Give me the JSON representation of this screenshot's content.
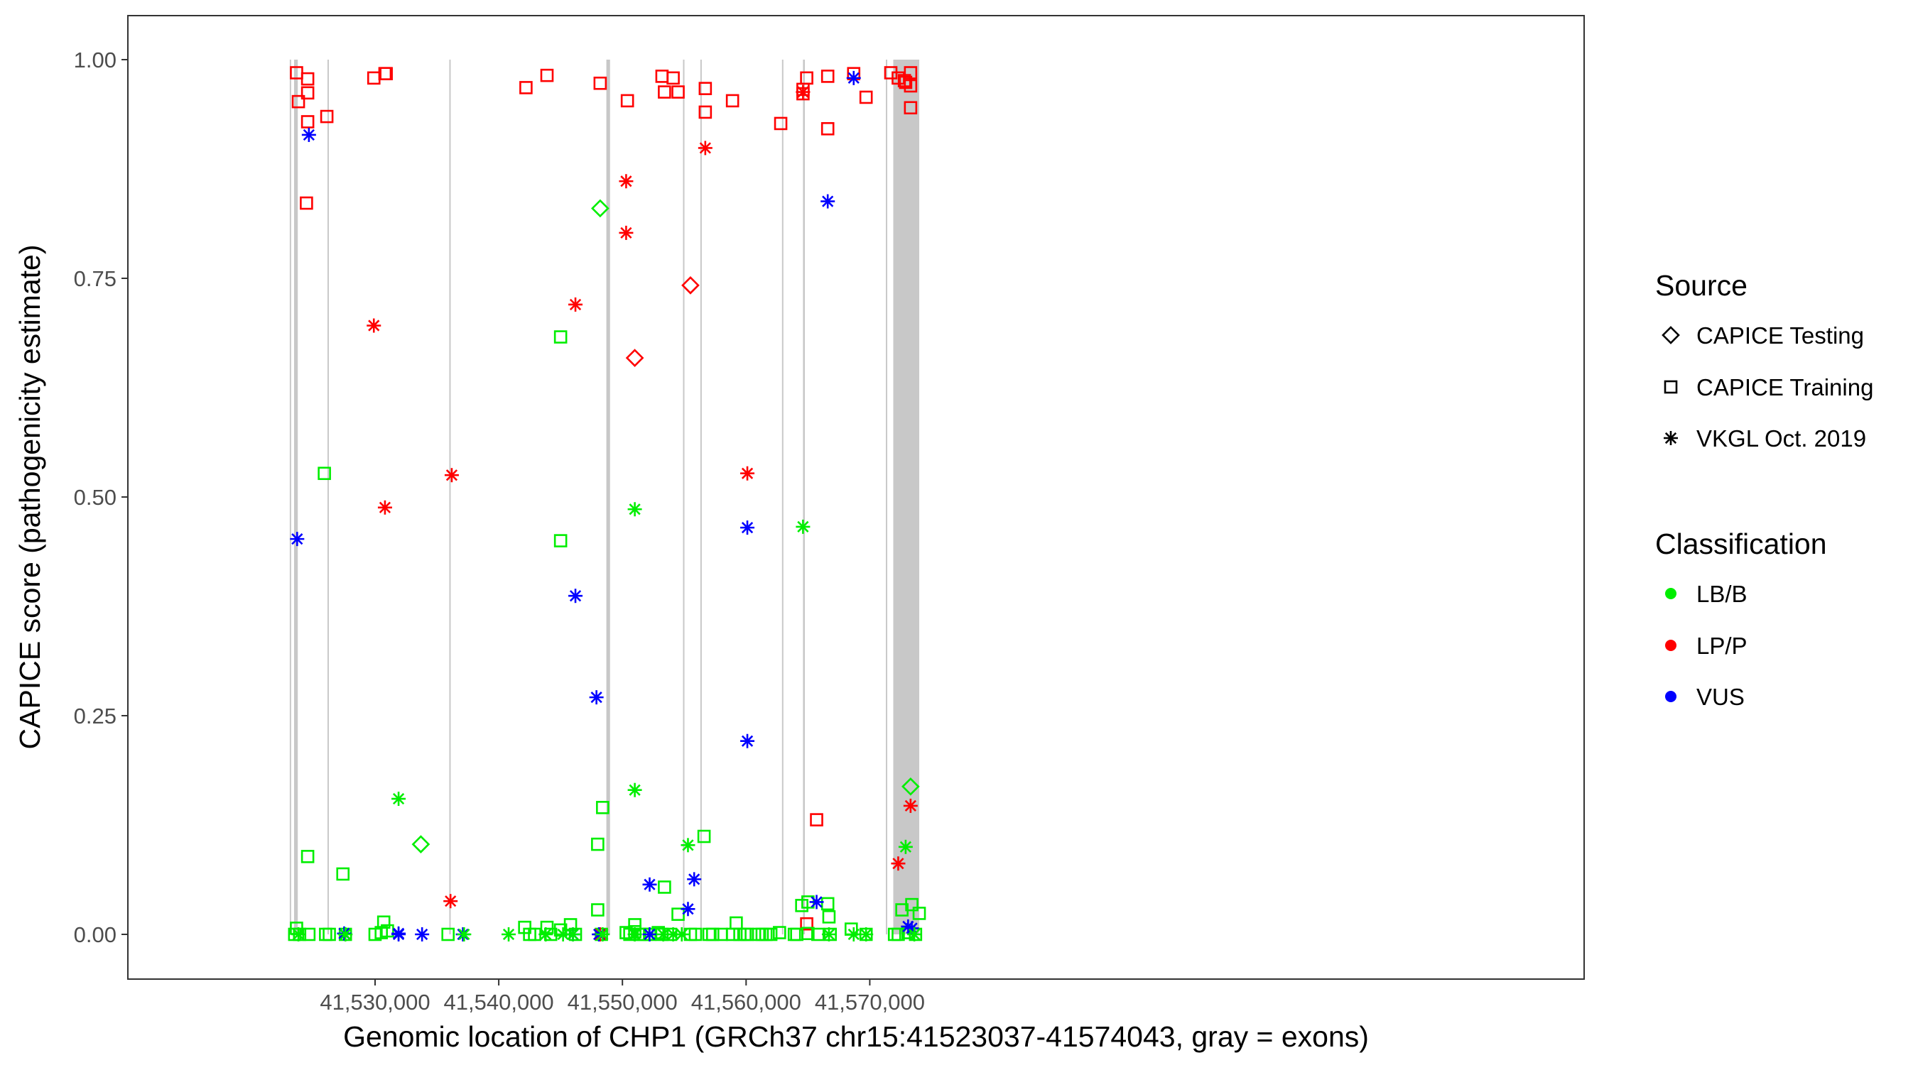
{
  "chart_data": {
    "type": "scatter",
    "title": "",
    "xlabel": "Genomic location of CHP1 (GRCh37 chr15:41523037-41574043, gray = exons)",
    "ylabel": "CAPICE score (pathogenicity estimate)",
    "xlim": [
      41521000,
      41575000
    ],
    "ylim": [
      -0.1,
      1.1
    ],
    "xticks": [
      41530000,
      41540000,
      41550000,
      41560000,
      41570000
    ],
    "xtick_labels": [
      "41,530,000",
      "41,540,000",
      "41,550,000",
      "41,560,000",
      "41,570,000"
    ],
    "yticks": [
      0,
      0.25,
      0.5,
      0.75,
      1
    ],
    "ytick_labels": [
      "0.00",
      "0.25",
      "0.50",
      "0.75",
      "1.00"
    ],
    "grid": false,
    "legend_position": "right",
    "exons": [
      [
        41523100,
        41523200
      ],
      [
        41523450,
        41523750
      ],
      [
        41526150,
        41526250
      ],
      [
        41536000,
        41536100
      ],
      [
        41548700,
        41549000
      ],
      [
        41554900,
        41555000
      ],
      [
        41556300,
        41556400
      ],
      [
        41562900,
        41563000
      ],
      [
        41564600,
        41564750
      ],
      [
        41571300,
        41571400
      ],
      [
        41571900,
        41574000
      ]
    ],
    "legend": {
      "source_title": "Source",
      "source_items": [
        {
          "label": "CAPICE Testing",
          "shape": "diamond"
        },
        {
          "label": "CAPICE Training",
          "shape": "square"
        },
        {
          "label": "VKGL Oct. 2019",
          "shape": "asterisk"
        }
      ],
      "class_title": "Classification",
      "class_items": [
        {
          "label": "LB/B",
          "color": "#00ee00"
        },
        {
          "label": "LP/P",
          "color": "#ff0000"
        },
        {
          "label": "VUS",
          "color": "#0000ff"
        }
      ]
    },
    "series": [
      {
        "source": "CAPICE Training",
        "class": "LP/P",
        "points": [
          [
            41523650,
            0.985
          ],
          [
            41523800,
            0.952
          ],
          [
            41524550,
            0.978
          ],
          [
            41524550,
            0.962
          ],
          [
            41524550,
            0.929
          ],
          [
            41524450,
            0.836
          ],
          [
            41526100,
            0.935
          ],
          [
            41529900,
            0.979
          ],
          [
            41530800,
            0.984
          ],
          [
            41530900,
            0.984
          ],
          [
            41542200,
            0.968
          ],
          [
            41543900,
            0.982
          ],
          [
            41548200,
            0.973
          ],
          [
            41550400,
            0.953
          ],
          [
            41553200,
            0.981
          ],
          [
            41553400,
            0.963
          ],
          [
            41554100,
            0.979
          ],
          [
            41554500,
            0.963
          ],
          [
            41556700,
            0.967
          ],
          [
            41556700,
            0.94
          ],
          [
            41558900,
            0.953
          ],
          [
            41562800,
            0.927
          ],
          [
            41564600,
            0.966
          ],
          [
            41564900,
            0.979
          ],
          [
            41564600,
            0.961
          ],
          [
            41566600,
            0.981
          ],
          [
            41566600,
            0.921
          ],
          [
            41568700,
            0.984
          ],
          [
            41569700,
            0.957
          ],
          [
            41571700,
            0.985
          ],
          [
            41572300,
            0.979
          ],
          [
            41572800,
            0.976
          ],
          [
            41572900,
            0.974
          ],
          [
            41573300,
            0.985
          ],
          [
            41573300,
            0.97
          ],
          [
            41573300,
            0.945
          ],
          [
            41565700,
            0.131
          ],
          [
            41564900,
            0.012
          ]
        ]
      },
      {
        "source": "CAPICE Training",
        "class": "LB/B",
        "points": [
          [
            41523650,
            0.007
          ],
          [
            41523500,
            0.0
          ],
          [
            41523900,
            0.0
          ],
          [
            41524650,
            0.0
          ],
          [
            41524550,
            0.089
          ],
          [
            41525900,
            0.527
          ],
          [
            41526000,
            0.0
          ],
          [
            41526300,
            0.0
          ],
          [
            41527400,
            0.069
          ],
          [
            41527600,
            0.0
          ],
          [
            41530000,
            0.0
          ],
          [
            41530700,
            0.014
          ],
          [
            41530500,
            0.002
          ],
          [
            41531000,
            0.004
          ],
          [
            41535900,
            0.0
          ],
          [
            41542100,
            0.008
          ],
          [
            41542500,
            0.0
          ],
          [
            41542900,
            0.0
          ],
          [
            41543900,
            0.008
          ],
          [
            41544200,
            0.0
          ],
          [
            41545000,
            0.683
          ],
          [
            41545000,
            0.45
          ],
          [
            41545000,
            0.005
          ],
          [
            41545800,
            0.011
          ],
          [
            41546200,
            0.0
          ],
          [
            41548000,
            0.103
          ],
          [
            41548000,
            0.028
          ],
          [
            41548400,
            0.145
          ],
          [
            41548300,
            0.0
          ],
          [
            41550300,
            0.002
          ],
          [
            41550600,
            0.0
          ],
          [
            41551000,
            0.011
          ],
          [
            41551000,
            0.003
          ],
          [
            41551400,
            0.0
          ],
          [
            41551700,
            0.0
          ],
          [
            41552200,
            0.0
          ],
          [
            41552900,
            0.002
          ],
          [
            41553200,
            0.0
          ],
          [
            41553400,
            0.054
          ],
          [
            41553900,
            0.0
          ],
          [
            41554500,
            0.023
          ],
          [
            41555500,
            0.0
          ],
          [
            41555900,
            0.0
          ],
          [
            41556600,
            0.112
          ],
          [
            41557000,
            0.0
          ],
          [
            41557300,
            0.0
          ],
          [
            41558000,
            0.0
          ],
          [
            41558900,
            0.0
          ],
          [
            41559200,
            0.013
          ],
          [
            41559500,
            0.0
          ],
          [
            41559900,
            0.0
          ],
          [
            41560100,
            0.0
          ],
          [
            41561000,
            0.0
          ],
          [
            41561300,
            0.0
          ],
          [
            41561600,
            0.0
          ],
          [
            41562000,
            0.0
          ],
          [
            41562700,
            0.002
          ],
          [
            41563900,
            0.0
          ],
          [
            41564100,
            0.0
          ],
          [
            41564500,
            0.033
          ],
          [
            41565000,
            0.037
          ],
          [
            41565000,
            0.001
          ],
          [
            41565800,
            0.0
          ],
          [
            41566600,
            0.035
          ],
          [
            41566700,
            0.02
          ],
          [
            41566800,
            0.0
          ],
          [
            41568500,
            0.006
          ],
          [
            41569700,
            0.0
          ],
          [
            41572000,
            0.0
          ],
          [
            41572300,
            0.0
          ],
          [
            41572600,
            0.028
          ],
          [
            41573100,
            0.002
          ],
          [
            41573400,
            0.034
          ],
          [
            41573700,
            0.0
          ],
          [
            41574000,
            0.024
          ]
        ]
      },
      {
        "source": "CAPICE Testing",
        "class": "LB/B",
        "points": [
          [
            41548200,
            0.83
          ],
          [
            41533700,
            0.103
          ],
          [
            41573300,
            0.169
          ]
        ]
      },
      {
        "source": "CAPICE Testing",
        "class": "LP/P",
        "points": [
          [
            41555500,
            0.742
          ],
          [
            41551000,
            0.659
          ]
        ]
      },
      {
        "source": "VKGL Oct. 2019",
        "class": "LP/P",
        "points": [
          [
            41529900,
            0.696
          ],
          [
            41530800,
            0.488
          ],
          [
            41536200,
            0.525
          ],
          [
            41536100,
            0.038
          ],
          [
            41546200,
            0.72
          ],
          [
            41550300,
            0.861
          ],
          [
            41550300,
            0.802
          ],
          [
            41556700,
            0.899
          ],
          [
            41560100,
            0.527
          ],
          [
            41564600,
            0.963
          ],
          [
            41572300,
            0.081
          ],
          [
            41573300,
            0.147
          ],
          [
            41548200,
            0.0
          ]
        ]
      },
      {
        "source": "VKGL Oct. 2019",
        "class": "VUS",
        "points": [
          [
            41523700,
            0.452
          ],
          [
            41524650,
            0.914
          ],
          [
            41527500,
            0.001
          ],
          [
            41531900,
            0.001
          ],
          [
            41531900,
            0.0
          ],
          [
            41533800,
            0.0
          ],
          [
            41537100,
            0.0
          ],
          [
            41546200,
            0.387
          ],
          [
            41546000,
            0.0
          ],
          [
            41547900,
            0.271
          ],
          [
            41548100,
            0.0
          ],
          [
            41552200,
            0.057
          ],
          [
            41552200,
            0.0
          ],
          [
            41555300,
            0.029
          ],
          [
            41555800,
            0.063
          ],
          [
            41560100,
            0.465
          ],
          [
            41560100,
            0.221
          ],
          [
            41565700,
            0.037
          ],
          [
            41566600,
            0.838
          ],
          [
            41568700,
            0.979
          ],
          [
            41573100,
            0.009
          ],
          [
            41573400,
            0.007
          ]
        ]
      },
      {
        "source": "VKGL Oct. 2019",
        "class": "LB/B",
        "points": [
          [
            41523800,
            0.0
          ],
          [
            41527600,
            0.0
          ],
          [
            41531900,
            0.155
          ],
          [
            41537200,
            0.0
          ],
          [
            41540800,
            0.0
          ],
          [
            41543800,
            0.0
          ],
          [
            41545200,
            0.0
          ],
          [
            41546000,
            0.0
          ],
          [
            41548400,
            0.0
          ],
          [
            41551000,
            0.486
          ],
          [
            41551000,
            0.165
          ],
          [
            41551000,
            0.0
          ],
          [
            41553300,
            0.0
          ],
          [
            41554100,
            0.0
          ],
          [
            41554800,
            0.0
          ],
          [
            41555300,
            0.102
          ],
          [
            41564600,
            0.466
          ],
          [
            41566700,
            0.0
          ],
          [
            41568700,
            0.0
          ],
          [
            41569700,
            0.0
          ],
          [
            41572900,
            0.1
          ],
          [
            41573600,
            0.0
          ]
        ]
      }
    ]
  }
}
